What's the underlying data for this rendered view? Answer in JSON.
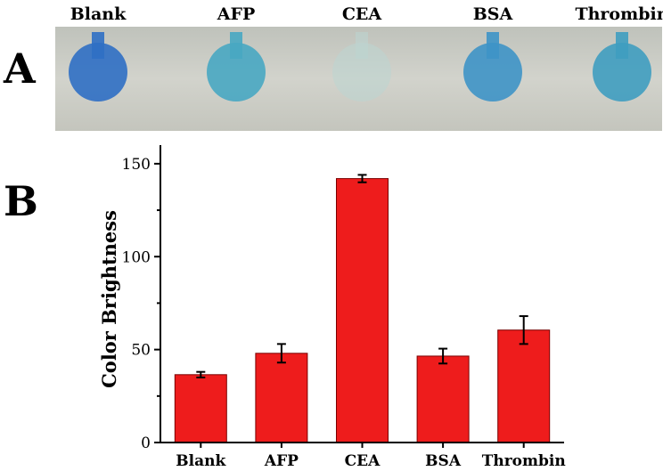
{
  "panels": {
    "a_label": "A",
    "b_label": "B"
  },
  "photo": {
    "strip_labels": [
      "Blank",
      "AFP",
      "CEA",
      "BSA",
      "Thrombin"
    ],
    "spot_colors": [
      "#2f6fc4",
      "#48a7c2",
      "#bcd6d2",
      "#3e94c6",
      "#3f9dc0"
    ],
    "background_color": "#cfd0c9"
  },
  "chart_data": {
    "type": "bar",
    "categories": [
      "Blank",
      "AFP",
      "CEA",
      "BSA",
      "Thrombin"
    ],
    "values": [
      36.5,
      48,
      142,
      46.5,
      60.5
    ],
    "errors": [
      1.5,
      5,
      2,
      4,
      7.5
    ],
    "ylabel": "Color Brightness",
    "ylim": [
      0,
      160
    ],
    "yticks": [
      0,
      50,
      100,
      150
    ],
    "bar_color": "#ee1c1c",
    "grid": false
  }
}
